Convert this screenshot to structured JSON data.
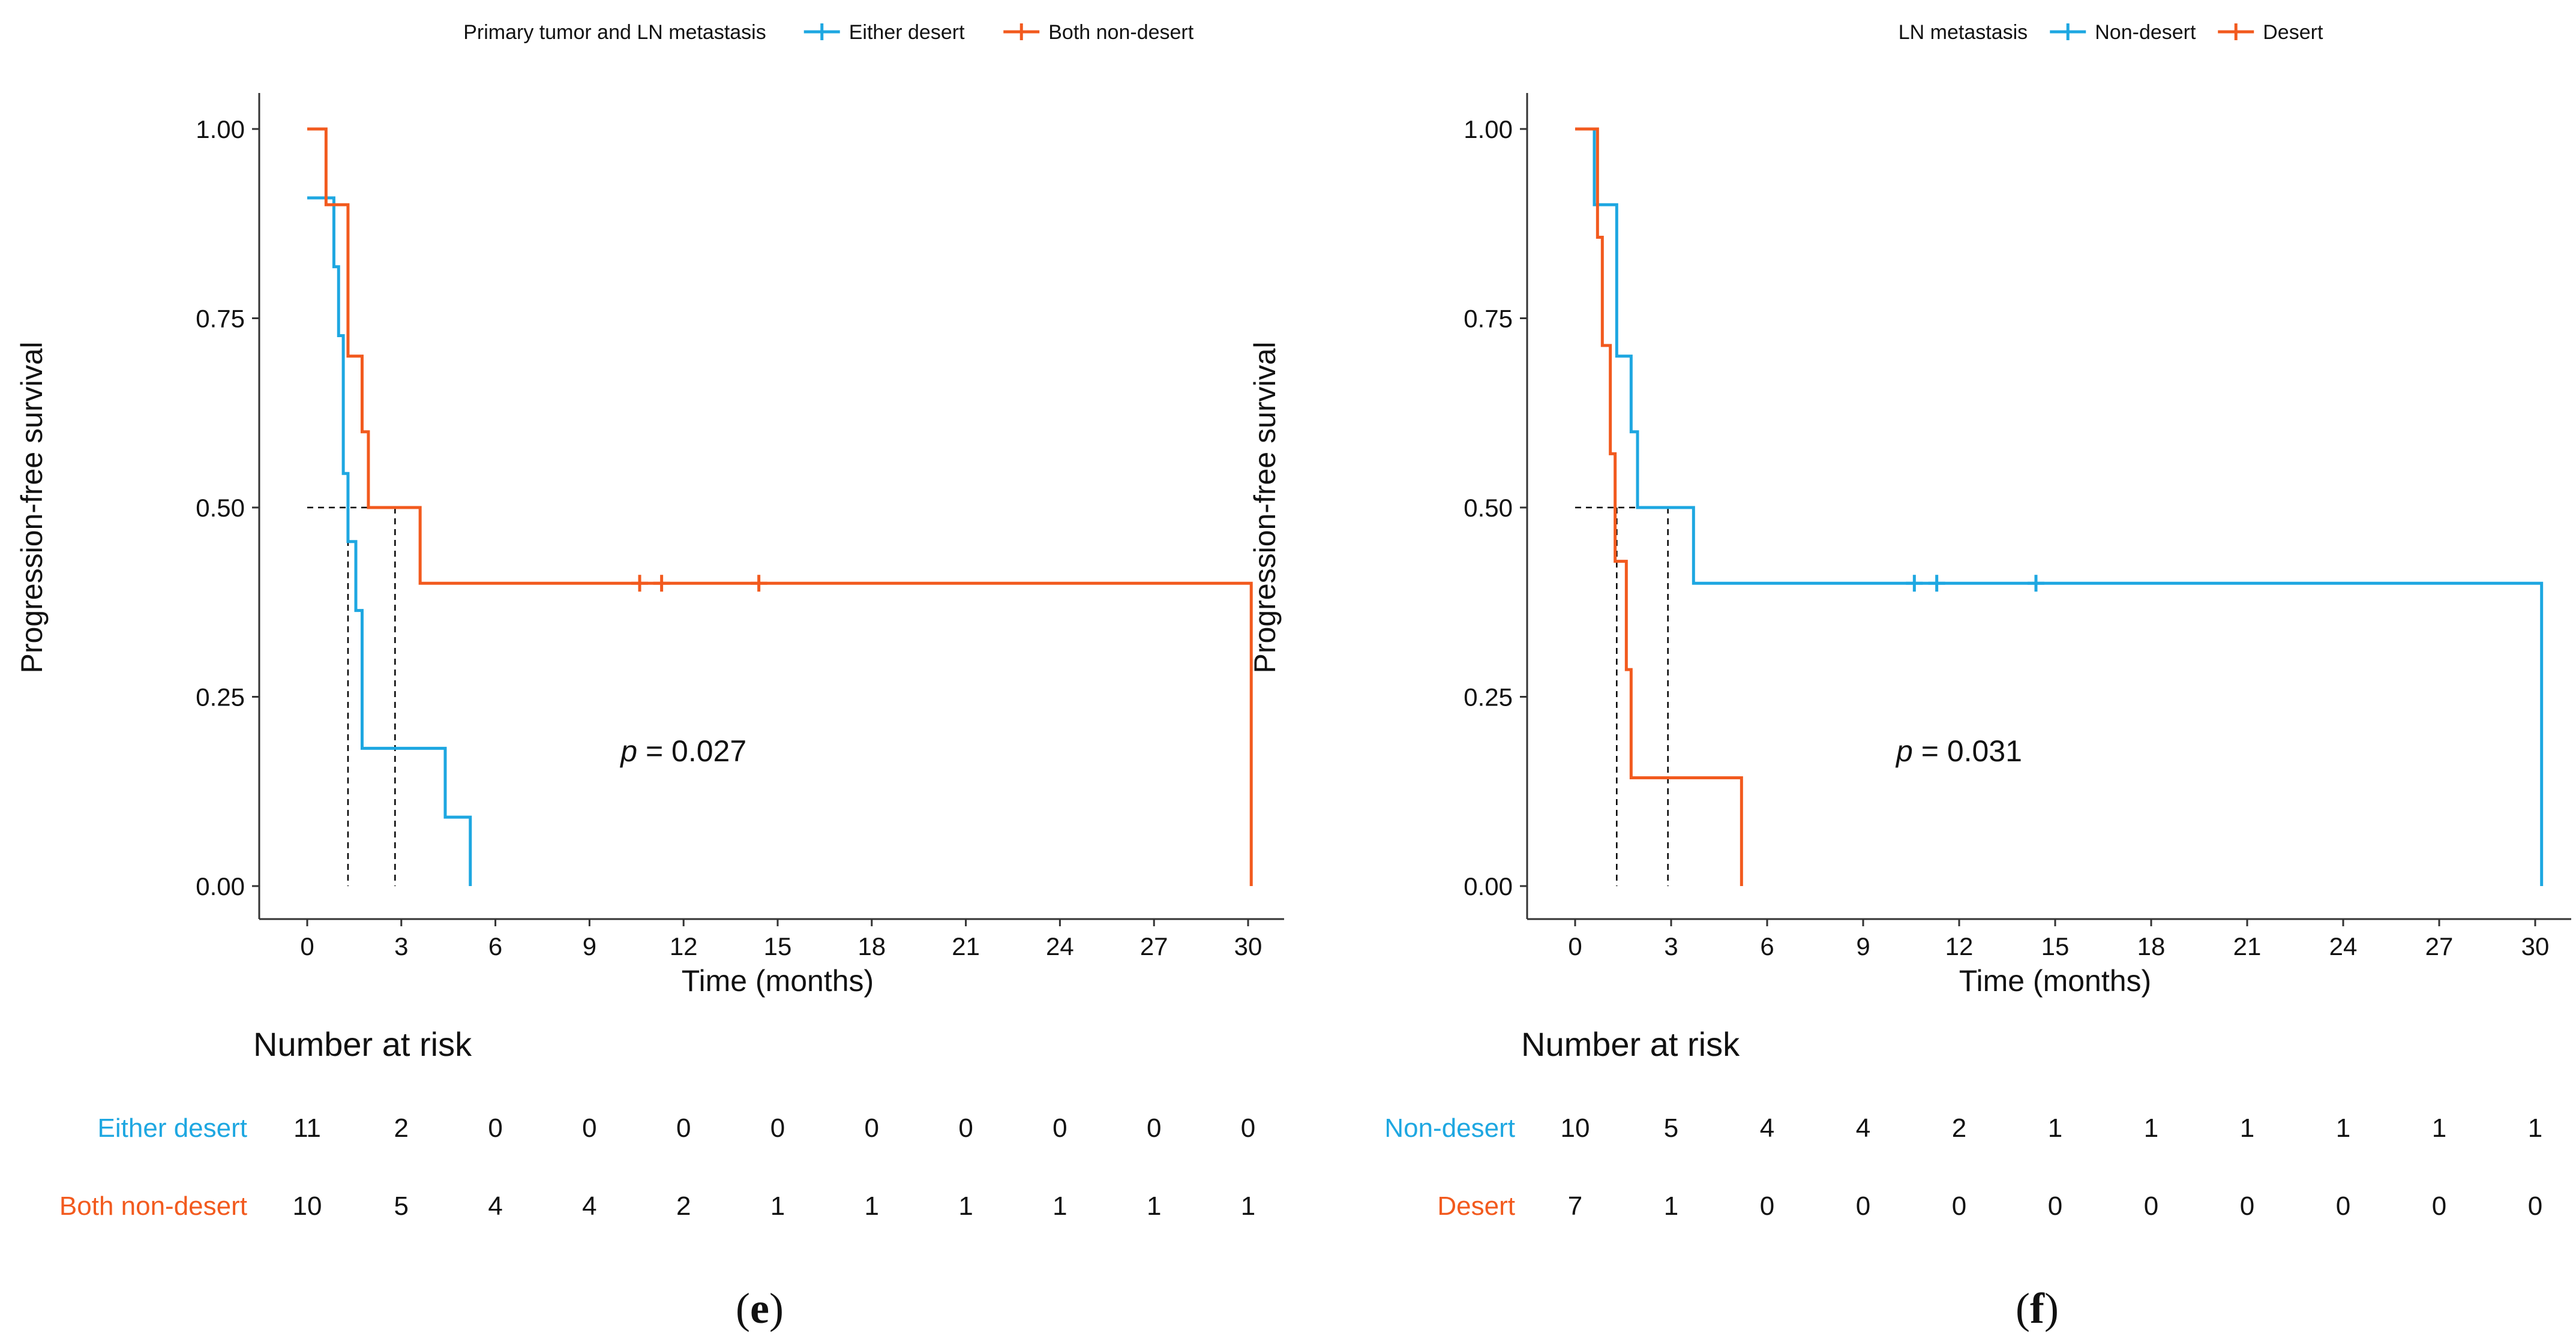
{
  "colors": {
    "group_a": "#1EA7E1",
    "group_b": "#F25A1E",
    "axis": "#333333",
    "text": "#111111",
    "median_line": "#000000"
  },
  "chart_data": [
    {
      "type": "line",
      "subtype": "kaplan-meier",
      "panel_label_open": "(",
      "panel_label_letter": "e",
      "panel_label_close": ")",
      "legend_title": "Primary tumor and LN metastasis",
      "legend_position": "top",
      "xlabel": "Time (months)",
      "ylabel": "Progression-free survival",
      "xlim": [
        0,
        30
      ],
      "ylim": [
        0,
        1
      ],
      "xticks": [
        0,
        3,
        6,
        9,
        12,
        15,
        18,
        21,
        24,
        27,
        30
      ],
      "xtick_labels": [
        "0",
        "3",
        "6",
        "9",
        "12",
        "15",
        "18",
        "21",
        "24",
        "27",
        "30"
      ],
      "yticks": [
        0,
        0.25,
        0.5,
        0.75,
        1
      ],
      "ytick_labels": [
        "0.00",
        "0.25",
        "0.50",
        "0.75",
        "1.00"
      ],
      "p_value_label": "p",
      "p_value_text": " = 0.027",
      "p_value_pos": [
        12,
        0.165
      ],
      "median_lines": [
        1.3,
        2.8
      ],
      "risk_table_title": "Number at risk",
      "series": [
        {
          "name": "Either desert",
          "color_key": "group_a",
          "steps": [
            [
              0,
              0.909
            ],
            [
              0.7,
              0.909
            ],
            [
              0.8,
              0.909
            ],
            [
              0.85,
              0.818
            ],
            [
              1.0,
              0.727
            ],
            [
              1.15,
              0.545
            ],
            [
              1.3,
              0.455
            ],
            [
              1.55,
              0.364
            ],
            [
              1.75,
              0.182
            ],
            [
              4.4,
              0.091
            ],
            [
              5.2,
              0.0
            ]
          ],
          "start_y": 0.909,
          "end_x": 5.2,
          "censors": [],
          "risk": [
            "11",
            "2",
            "0",
            "0",
            "0",
            "0",
            "0",
            "0",
            "0",
            "0",
            "0"
          ]
        },
        {
          "name": "Both non-desert",
          "color_key": "group_b",
          "steps": [
            [
              0,
              1.0
            ],
            [
              0.6,
              0.9
            ],
            [
              1.3,
              0.7
            ],
            [
              1.75,
              0.6
            ],
            [
              1.95,
              0.5
            ],
            [
              3.6,
              0.4
            ],
            [
              30.1,
              0.0
            ]
          ],
          "start_y": 1.0,
          "end_x": 30.1,
          "censors": [
            10.6,
            11.3,
            14.4
          ],
          "risk": [
            "10",
            "5",
            "4",
            "4",
            "2",
            "1",
            "1",
            "1",
            "1",
            "1",
            "1"
          ]
        }
      ]
    },
    {
      "type": "line",
      "subtype": "kaplan-meier",
      "panel_label_open": "(",
      "panel_label_letter": "f",
      "panel_label_close": ")",
      "legend_title": "LN metastasis",
      "legend_position": "top",
      "xlabel": "Time (months)",
      "ylabel": "Progression-free survival",
      "xlim": [
        0,
        30
      ],
      "ylim": [
        0,
        1
      ],
      "xticks": [
        0,
        3,
        6,
        9,
        12,
        15,
        18,
        21,
        24,
        27,
        30
      ],
      "xtick_labels": [
        "0",
        "3",
        "6",
        "9",
        "12",
        "15",
        "18",
        "21",
        "24",
        "27",
        "30"
      ],
      "yticks": [
        0,
        0.25,
        0.5,
        0.75,
        1
      ],
      "ytick_labels": [
        "0.00",
        "0.25",
        "0.50",
        "0.75",
        "1.00"
      ],
      "p_value_label": "p",
      "p_value_text": " = 0.031",
      "p_value_pos": [
        12,
        0.165
      ],
      "median_lines": [
        1.3,
        2.9
      ],
      "risk_table_title": "Number at risk",
      "series": [
        {
          "name": "Non-desert",
          "color_key": "group_a",
          "steps": [
            [
              0,
              1.0
            ],
            [
              0.6,
              0.9
            ],
            [
              1.3,
              0.7
            ],
            [
              1.75,
              0.6
            ],
            [
              1.95,
              0.5
            ],
            [
              3.7,
              0.4
            ],
            [
              30.2,
              0.0
            ]
          ],
          "start_y": 1.0,
          "end_x": 30.2,
          "censors": [
            10.6,
            11.3,
            14.4
          ],
          "risk": [
            "10",
            "5",
            "4",
            "4",
            "2",
            "1",
            "1",
            "1",
            "1",
            "1",
            "1"
          ]
        },
        {
          "name": "Desert",
          "color_key": "group_b",
          "steps": [
            [
              0,
              1.0
            ],
            [
              0.7,
              0.857
            ],
            [
              0.85,
              0.714
            ],
            [
              1.1,
              0.571
            ],
            [
              1.25,
              0.429
            ],
            [
              1.6,
              0.286
            ],
            [
              1.75,
              0.143
            ],
            [
              5.2,
              0.0
            ]
          ],
          "start_y": 1.0,
          "end_x": 5.2,
          "censors": [],
          "risk": [
            "7",
            "1",
            "0",
            "0",
            "0",
            "0",
            "0",
            "0",
            "0",
            "0",
            "0"
          ]
        }
      ]
    }
  ]
}
